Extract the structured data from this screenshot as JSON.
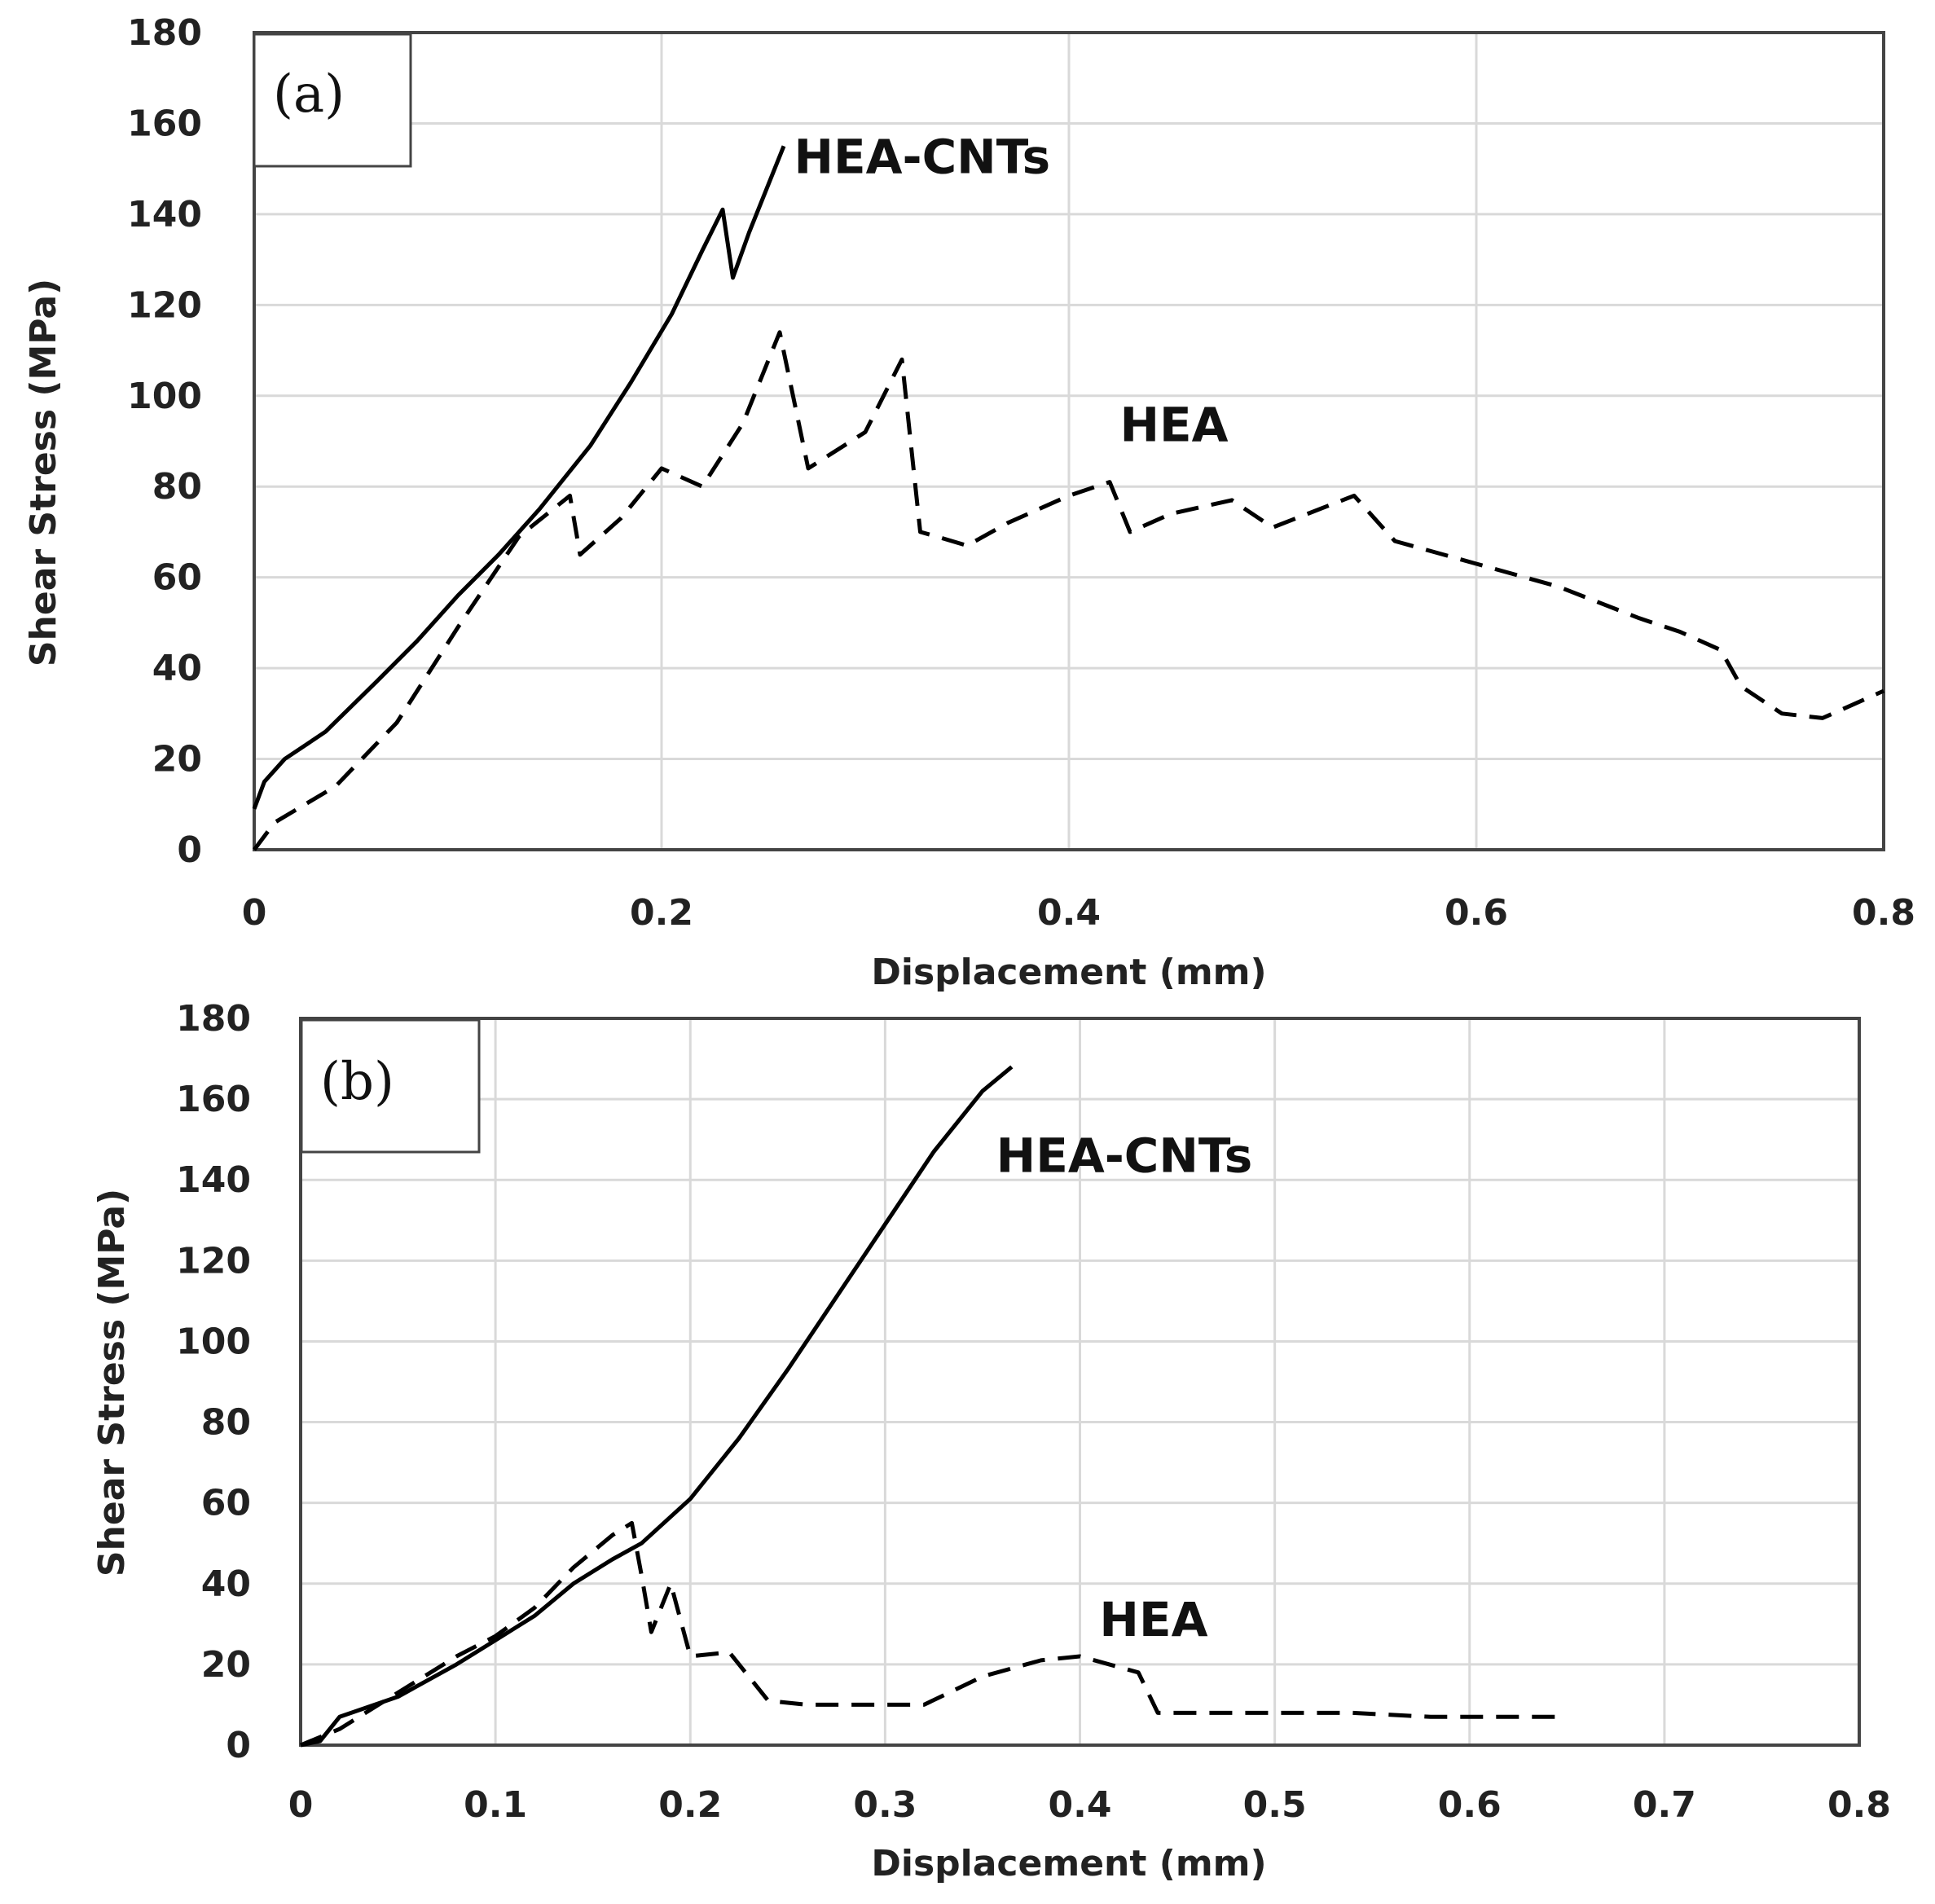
{
  "chart_data": [
    {
      "type": "line",
      "panel_label": "(a)",
      "xlabel": "Displacement (mm)",
      "ylabel": "Shear Stress (MPa)",
      "xlim": [
        0,
        0.8
      ],
      "ylim": [
        0,
        180
      ],
      "x_ticks": [
        "0",
        "0.2",
        "0.4",
        "0.6",
        "0.8"
      ],
      "y_ticks": [
        "0",
        "20",
        "40",
        "60",
        "80",
        "100",
        "120",
        "140",
        "160",
        "180"
      ],
      "x_grid": [
        0,
        0.2,
        0.4,
        0.6,
        0.8
      ],
      "y_grid": [
        0,
        20,
        40,
        60,
        80,
        100,
        120,
        140,
        160,
        180
      ],
      "grid": true,
      "series": [
        {
          "name": "HEA-CNTs",
          "style": "solid",
          "label_at": [
            0.265,
            149
          ],
          "x": [
            0,
            0.005,
            0.015,
            0.035,
            0.06,
            0.08,
            0.1,
            0.12,
            0.14,
            0.165,
            0.185,
            0.205,
            0.22,
            0.23,
            0.235,
            0.243,
            0.26
          ],
          "y": [
            9,
            15,
            20,
            26,
            37,
            46,
            56,
            65,
            75,
            89,
            103,
            118,
            132,
            141,
            126,
            136,
            155
          ]
        },
        {
          "name": "HEA",
          "style": "dashed",
          "label_at": [
            0.425,
            90
          ],
          "x": [
            0,
            0.01,
            0.04,
            0.07,
            0.1,
            0.13,
            0.155,
            0.16,
            0.18,
            0.2,
            0.22,
            0.24,
            0.258,
            0.272,
            0.3,
            0.318,
            0.327,
            0.335,
            0.35,
            0.37,
            0.4,
            0.42,
            0.43,
            0.45,
            0.48,
            0.5,
            0.54,
            0.56,
            0.6,
            0.64,
            0.68,
            0.7,
            0.72,
            0.73,
            0.75,
            0.77,
            0.8
          ],
          "y": [
            0,
            6,
            14,
            28,
            49,
            69,
            78,
            65,
            73,
            84,
            80,
            94,
            114,
            84,
            92,
            108,
            70,
            69,
            67,
            72,
            78,
            81,
            70,
            74,
            77,
            71,
            78,
            68,
            63,
            58,
            51,
            48,
            44,
            36,
            30,
            29,
            35
          ]
        }
      ]
    },
    {
      "type": "line",
      "panel_label": "(b)",
      "xlabel": "Displacement (mm)",
      "ylabel": "Shear Stress (MPa)",
      "xlim": [
        0,
        0.8
      ],
      "ylim": [
        0,
        180
      ],
      "x_ticks": [
        "0",
        "0.1",
        "0.2",
        "0.3",
        "0.4",
        "0.5",
        "0.6",
        "0.7",
        "0.8"
      ],
      "y_ticks": [
        "0",
        "20",
        "40",
        "60",
        "80",
        "100",
        "120",
        "140",
        "160",
        "180"
      ],
      "x_grid": [
        0,
        0.1,
        0.2,
        0.3,
        0.4,
        0.5,
        0.6,
        0.7,
        0.8
      ],
      "y_grid": [
        0,
        20,
        40,
        60,
        80,
        100,
        120,
        140,
        160,
        180
      ],
      "grid": true,
      "series": [
        {
          "name": "HEA-CNTs",
          "style": "solid",
          "label_at": [
            0.357,
            142
          ],
          "x": [
            0,
            0.01,
            0.02,
            0.05,
            0.08,
            0.1,
            0.12,
            0.14,
            0.15,
            0.16,
            0.175,
            0.2,
            0.225,
            0.25,
            0.275,
            0.3,
            0.325,
            0.35,
            0.365
          ],
          "y": [
            0,
            1,
            7,
            12,
            20,
            26,
            32,
            40,
            43,
            46,
            50,
            61,
            76,
            93,
            111,
            129,
            147,
            162,
            168
          ]
        },
        {
          "name": "HEA",
          "style": "dashed",
          "label_at": [
            0.41,
            27
          ],
          "x": [
            0,
            0.02,
            0.04,
            0.06,
            0.08,
            0.1,
            0.12,
            0.14,
            0.16,
            0.17,
            0.175,
            0.18,
            0.19,
            0.2,
            0.22,
            0.24,
            0.26,
            0.28,
            0.3,
            0.32,
            0.35,
            0.38,
            0.4,
            0.43,
            0.44,
            0.46,
            0.5,
            0.54,
            0.58,
            0.62,
            0.645
          ],
          "y": [
            0,
            4,
            10,
            16,
            22,
            27,
            34,
            44,
            52,
            55,
            42,
            28,
            40,
            22,
            23,
            11,
            10,
            10,
            10,
            10,
            17,
            21,
            22,
            18,
            8,
            8,
            8,
            8,
            7,
            7,
            7
          ]
        }
      ]
    }
  ]
}
